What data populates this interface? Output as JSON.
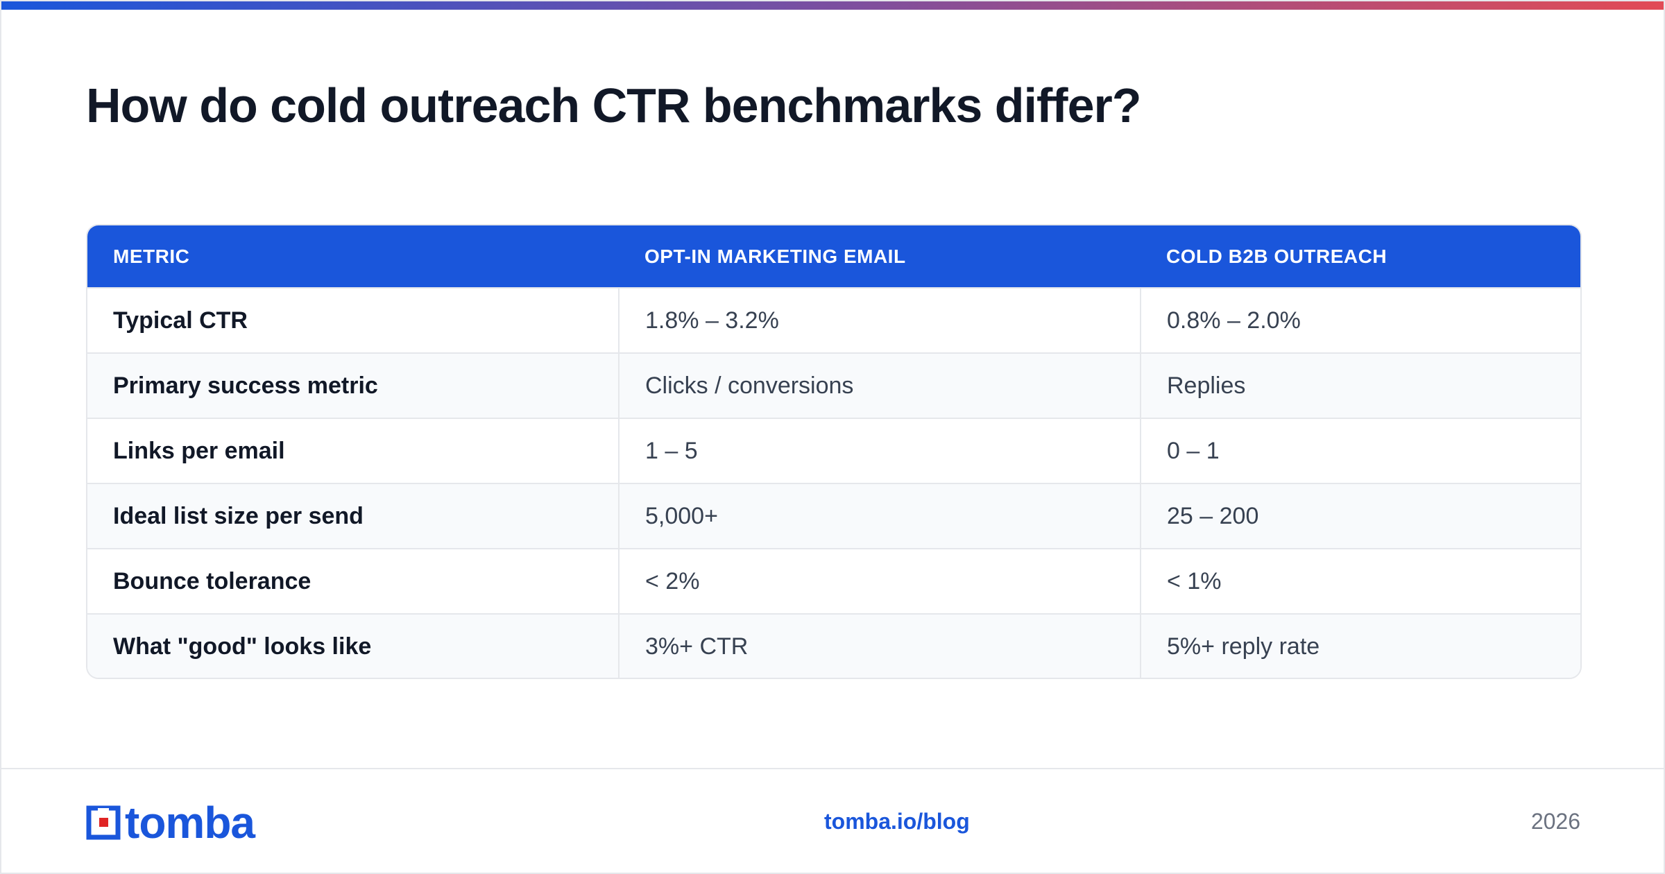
{
  "title": "How do cold outreach CTR benchmarks differ?",
  "table": {
    "headers": [
      "METRIC",
      "OPT-IN MARKETING EMAIL",
      "COLD B2B OUTREACH"
    ],
    "rows": [
      [
        "Typical CTR",
        "1.8% – 3.2%",
        "0.8% – 2.0%"
      ],
      [
        "Primary success metric",
        "Clicks / conversions",
        "Replies"
      ],
      [
        "Links per email",
        "1 – 5",
        "0 – 1"
      ],
      [
        "Ideal list size per send",
        "5,000+",
        "25 – 200"
      ],
      [
        "Bounce tolerance",
        "< 2%",
        "< 1%"
      ],
      [
        "What \"good\" looks like",
        "3%+ CTR",
        "5%+ reply rate"
      ]
    ]
  },
  "footer": {
    "logo_text": "tomba",
    "link": "tomba.io/blog",
    "year": "2026"
  },
  "colors": {
    "brand_blue": "#1a56db",
    "accent_red": "#e02424"
  }
}
